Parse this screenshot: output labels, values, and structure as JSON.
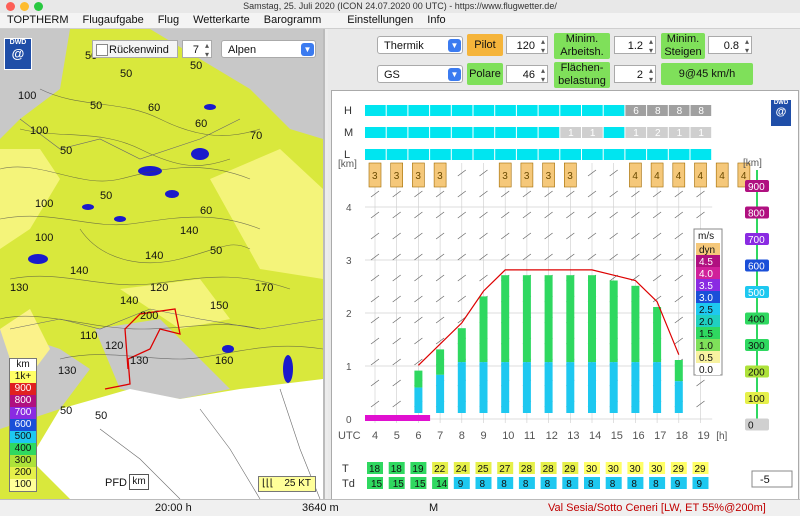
{
  "window": {
    "title": "Samstag, 25. Juli 2020 (ICON 24.07.2020 00 UTC) - https://www.flugwetter.de/"
  },
  "menu": [
    "TOPTHERM",
    "Flugaufgabe",
    "Flug",
    "Wetterkarte",
    "Barogramm",
    "Einstellungen",
    "Info"
  ],
  "map": {
    "logo_text": "DWD",
    "rueckenwind_label": "Rückenwind",
    "rueckenwind_value": "7",
    "region": "Alpen",
    "contour_labels": [
      "50",
      "50",
      "50",
      "50",
      "50",
      "50",
      "50",
      "50",
      "50",
      "60",
      "60",
      "60",
      "70",
      "100",
      "100",
      "100",
      "100",
      "110",
      "120",
      "120",
      "130",
      "130",
      "130",
      "140",
      "140",
      "140",
      "140",
      "150",
      "160",
      "170",
      "200"
    ],
    "legend_unit": "km",
    "legend": [
      {
        "label": "1k+",
        "color": "#ffff66"
      },
      {
        "label": "900",
        "color": "#e02020"
      },
      {
        "label": "800",
        "color": "#b01080"
      },
      {
        "label": "700",
        "color": "#8a2be2"
      },
      {
        "label": "600",
        "color": "#1a4fd8"
      },
      {
        "label": "500",
        "color": "#1ec8f0"
      },
      {
        "label": "400",
        "color": "#2fd860"
      },
      {
        "label": "300",
        "color": "#aee23a"
      },
      {
        "label": "200",
        "color": "#e6f04a"
      },
      {
        "label": "100",
        "color": "#ffff99"
      }
    ],
    "pfd_label": "PFD",
    "pfd_unit": "km",
    "wind_scale": "25 KT"
  },
  "controls": {
    "mode": "Thermik",
    "glider": "GS",
    "pilot_label": "Pilot",
    "pilot_value": "120",
    "polare_label": "Polare",
    "polare_value": "46",
    "min_arbeit_label": "Minim. Arbeitsh.",
    "min_arbeit_value": "1.2",
    "flaechen_label": "Flächen-belastung",
    "flaechen_value": "2",
    "min_steigen_label": "Minim. Steigen",
    "min_steigen_value": "0.8",
    "result": "9@45 km/h"
  },
  "chart": {
    "logo_text": "DWD",
    "cloud_rows": [
      {
        "label": "H",
        "values": [
          "",
          "",
          "",
          "",
          "",
          "",
          "",
          "",
          "",
          "",
          "",
          "",
          "6",
          "8",
          "8",
          "8"
        ]
      },
      {
        "label": "M",
        "values": [
          "",
          "",
          "",
          "",
          "",
          "",
          "",
          "",
          "",
          "1",
          "1",
          "",
          "1",
          "2",
          "1",
          "1"
        ]
      },
      {
        "label": "L",
        "values": [
          "",
          "",
          "",
          "",
          "",
          "",
          "",
          "",
          "",
          "",
          "",
          "",
          "",
          "",
          "",
          ""
        ]
      }
    ],
    "y_unit_left": "[km]",
    "y_ticks": [
      "0",
      "1",
      "2",
      "3",
      "4"
    ],
    "x_prefix": "UTC",
    "x_ticks": [
      "4",
      "5",
      "6",
      "7",
      "8",
      "9",
      "10",
      "11",
      "12",
      "13",
      "14",
      "15",
      "16",
      "17",
      "18",
      "19"
    ],
    "x_unit": "[h]",
    "cloud_base_labels": [
      "3",
      "3",
      "3",
      "3",
      "3",
      "3",
      "3",
      "3",
      "4",
      "4",
      "4",
      "4",
      "4",
      "4"
    ],
    "climb_legend": {
      "unit": "m/s",
      "items": [
        {
          "label": "dyn",
          "color": "#f5c87a"
        },
        {
          "label": "4.5",
          "color": "#b01080"
        },
        {
          "label": "4.0",
          "color": "#d0209a"
        },
        {
          "label": "3.5",
          "color": "#8a2be2"
        },
        {
          "label": "3.0",
          "color": "#1a4fd8"
        },
        {
          "label": "2.5",
          "color": "#1ec8f0"
        },
        {
          "label": "2.0",
          "color": "#20d0c0"
        },
        {
          "label": "1.5",
          "color": "#2fd860"
        },
        {
          "label": "1.0",
          "color": "#7fe05a"
        },
        {
          "label": "0.5",
          "color": "#f8f2a0"
        },
        {
          "label": "0.0",
          "color": "#ffffff"
        }
      ]
    },
    "alt_scale": {
      "unit": "[km]",
      "items": [
        {
          "label": "900",
          "color": "#b01080"
        },
        {
          "label": "800",
          "color": "#b01080"
        },
        {
          "label": "700",
          "color": "#8a2be2"
        },
        {
          "label": "600",
          "color": "#1a4fd8"
        },
        {
          "label": "500",
          "color": "#1ec8f0"
        },
        {
          "label": "400",
          "color": "#2fd860"
        },
        {
          "label": "300",
          "color": "#2fd860"
        },
        {
          "label": "200",
          "color": "#aee23a"
        },
        {
          "label": "100",
          "color": "#e6f04a"
        },
        {
          "label": "0",
          "color": "#d0d0d0"
        }
      ]
    },
    "T_label": "T",
    "Td_label": "Td",
    "T_values": [
      "18",
      "18",
      "19",
      "22",
      "24",
      "25",
      "27",
      "28",
      "28",
      "29",
      "30",
      "30",
      "30",
      "30",
      "29",
      "29"
    ],
    "Td_values": [
      "15",
      "15",
      "15",
      "14",
      "9",
      "8",
      "8",
      "8",
      "8",
      "8",
      "8",
      "8",
      "8",
      "8",
      "9",
      "9"
    ],
    "offset_value": "-5"
  },
  "status": {
    "time": "20:00 h",
    "altitude": "3640 m",
    "marker": "M",
    "location": "Val Sesia/Sotto Ceneri [LW, ET  55%@200m]"
  }
}
